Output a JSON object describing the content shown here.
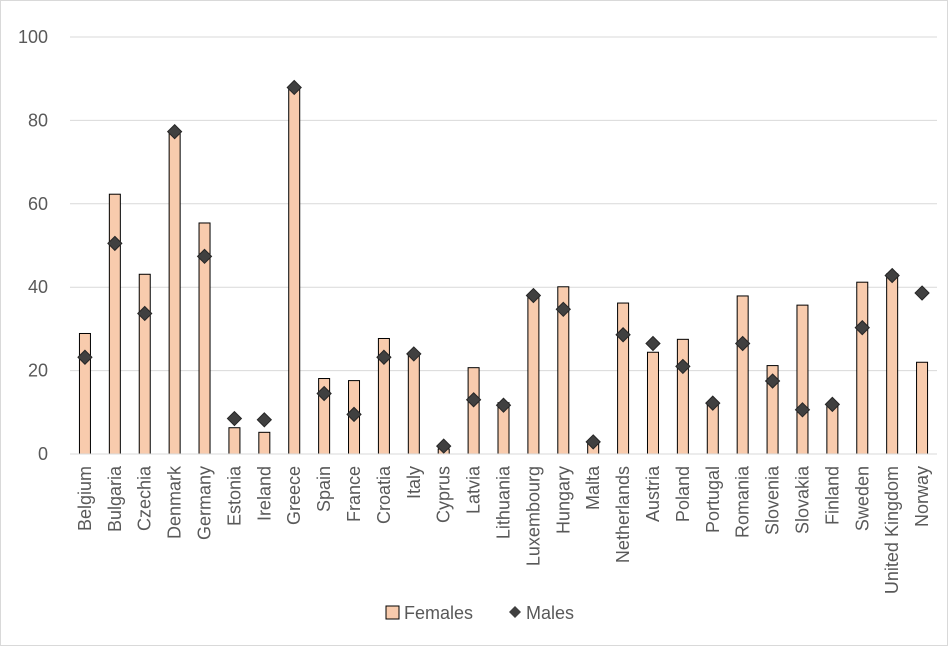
{
  "chart_data": {
    "type": "bar",
    "categories": [
      "Belgium",
      "Bulgaria",
      "Czechia",
      "Denmark",
      "Germany",
      "Estonia",
      "Ireland",
      "Greece",
      "Spain",
      "France",
      "Croatia",
      "Italy",
      "Cyprus",
      "Latvia",
      "Lithuania",
      "Luxembourg",
      "Hungary",
      "Malta",
      "Netherlands",
      "Austria",
      "Poland",
      "Portugal",
      "Romania",
      "Slovenia",
      "Slovakia",
      "Finland",
      "Sweden",
      "United Kingdom",
      "Norway"
    ],
    "series": [
      {
        "name": "Females",
        "type": "bar",
        "values": [
          28.9,
          62.3,
          43.1,
          77.4,
          55.4,
          6.3,
          5.2,
          87.9,
          18.1,
          17.6,
          27.7,
          24.0,
          1.2,
          20.7,
          12.3,
          38.1,
          40.1,
          2.8,
          36.2,
          24.4,
          27.5,
          12.2,
          37.9,
          21.2,
          35.7,
          11.9,
          41.2,
          43.2,
          22.0
        ],
        "color": "#f8cbad",
        "border_color": "#000000"
      },
      {
        "name": "Males",
        "type": "marker",
        "marker": "diamond",
        "values": [
          23.2,
          50.5,
          33.7,
          77.3,
          47.4,
          8.5,
          8.2,
          87.9,
          14.5,
          9.5,
          23.2,
          24.0,
          1.9,
          13.0,
          11.7,
          38.0,
          34.7,
          2.9,
          28.6,
          26.5,
          21.0,
          12.2,
          26.5,
          17.5,
          10.6,
          11.9,
          30.3,
          42.8,
          38.6
        ],
        "color": "#404040"
      }
    ],
    "yaxis": {
      "min": 0,
      "max": 100,
      "ticks": [
        0,
        20,
        40,
        60,
        80,
        100
      ]
    },
    "grid": "horizontal",
    "legend_position": "bottom",
    "title": "",
    "xlabel": "",
    "ylabel": ""
  }
}
